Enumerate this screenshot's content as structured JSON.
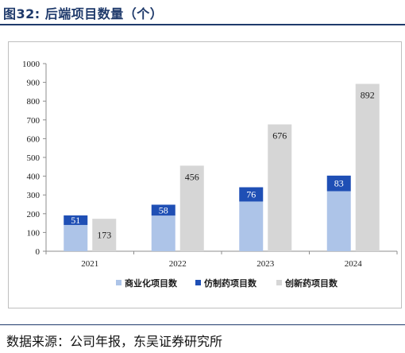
{
  "figure": {
    "title": "图32:  后端项目数量（个）",
    "source": "数据来源：公司年报，东吴证券研究所"
  },
  "chart_data": {
    "type": "bar",
    "categories": [
      "2021",
      "2022",
      "2023",
      "2024"
    ],
    "series": [
      {
        "name": "仿制药项目数",
        "values": [
          51,
          58,
          76,
          83
        ],
        "color": "#1f4fb5",
        "stack": "A"
      },
      {
        "name": "商业化项目数",
        "values": [
          140,
          190,
          265,
          320
        ],
        "color": "#adc4e8",
        "stack": "A"
      },
      {
        "name": "创新药项目数",
        "values": [
          173,
          456,
          676,
          892
        ],
        "color": "#d6d6d6",
        "stack": "B"
      }
    ],
    "y_ticks": [
      "0",
      "100",
      "200",
      "300",
      "400",
      "500",
      "600",
      "700",
      "800",
      "900",
      "1000"
    ],
    "ylim": [
      0,
      1000
    ],
    "grid": false,
    "legend_position": "bottom",
    "xlabel": "",
    "ylabel": ""
  }
}
